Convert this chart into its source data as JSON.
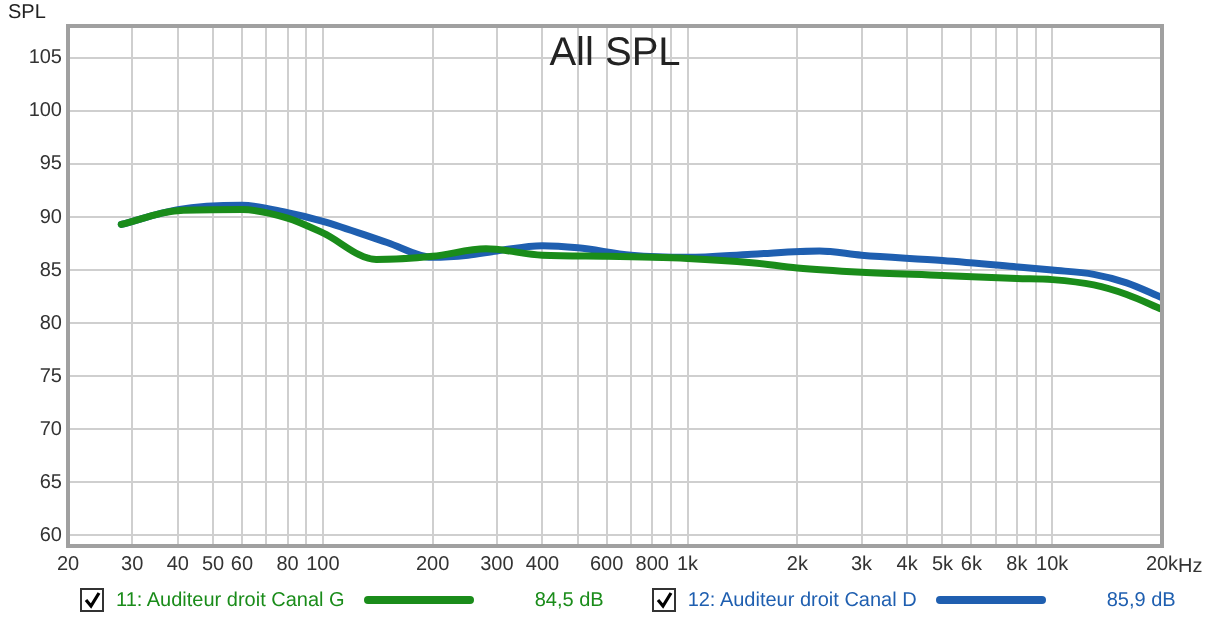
{
  "chart_data": {
    "type": "line",
    "title": "All SPL",
    "ylabel": "SPL",
    "log": "x",
    "grid": true,
    "legend": "bottom",
    "marker": "none",
    "line_style": "solid",
    "xlim": [
      20,
      20000
    ],
    "ylim": [
      59,
      108
    ],
    "xticks": [
      20,
      30,
      40,
      50,
      60,
      {
        "value": 70,
        "label": null
      },
      80,
      {
        "value": 90,
        "label": null
      },
      100,
      200,
      300,
      400,
      {
        "value": 500,
        "label": null
      },
      600,
      {
        "value": 700,
        "label": null
      },
      800,
      {
        "value": 900,
        "label": null
      },
      {
        "value": 1000,
        "label": "1k"
      },
      {
        "value": 2000,
        "label": "2k"
      },
      {
        "value": 3000,
        "label": "3k"
      },
      {
        "value": 4000,
        "label": "4k"
      },
      {
        "value": 5000,
        "label": "5k"
      },
      {
        "value": 6000,
        "label": "6k"
      },
      {
        "value": 7000,
        "label": null
      },
      {
        "value": 8000,
        "label": "8k"
      },
      {
        "value": 9000,
        "label": null
      },
      {
        "value": 10000,
        "label": "10k"
      },
      {
        "value": 20000,
        "label": "20k"
      }
    ],
    "xlabel": "Hz",
    "yticks": [
      60,
      65,
      70,
      75,
      80,
      85,
      90,
      95,
      100,
      105
    ],
    "annotations": [
      "84,5 dB",
      "85,9 dB"
    ],
    "series": [
      {
        "name": "11: Auditeur droit Canal G",
        "color": "#1a8c1a",
        "x": [
          28,
          40,
          60,
          80,
          100,
          140,
          200,
          280,
          400,
          600,
          1000,
          1500,
          2000,
          3000,
          5000,
          8000,
          10000,
          13000,
          16000,
          20000
        ],
        "values": [
          89.3,
          90.6,
          90.7,
          89.9,
          88.5,
          86.0,
          86.3,
          87.0,
          86.4,
          86.3,
          86.1,
          85.7,
          85.2,
          84.8,
          84.5,
          84.2,
          84.1,
          83.6,
          82.7,
          81.3
        ]
      },
      {
        "name": "12: Auditeur droit Canal D",
        "color": "#1f5fb0",
        "x": [
          28,
          40,
          60,
          80,
          100,
          150,
          200,
          250,
          300,
          400,
          500,
          700,
          1000,
          1500,
          2300,
          3000,
          5000,
          8000,
          10000,
          13000,
          16000,
          20000
        ],
        "values": [
          89.3,
          90.7,
          91.1,
          90.4,
          89.6,
          87.6,
          86.2,
          86.4,
          86.8,
          87.3,
          87.1,
          86.4,
          86.2,
          86.5,
          86.8,
          86.4,
          85.9,
          85.3,
          85.0,
          84.6,
          83.8,
          82.4
        ]
      }
    ]
  }
}
